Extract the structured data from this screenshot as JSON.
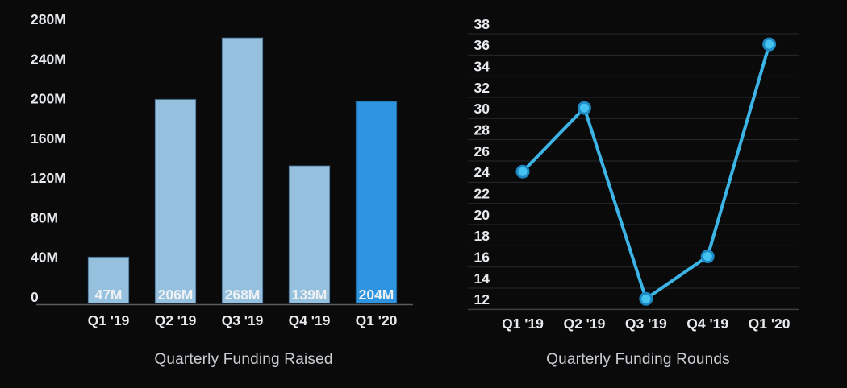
{
  "page": {
    "background": "#0a0a0b"
  },
  "colors": {
    "background": "#0a0a0b",
    "axis_text": "#e8ebee",
    "title_text": "#c9ced3",
    "bar_fill": "#96c1de",
    "bar_highlight_fill": "#2e94df",
    "bar_edge": "rgba(13,40,66,0.5)",
    "bar_value_text": "#eef1f4",
    "axis_line": "#565b60",
    "gridline": "#27292c",
    "gridline_bottom": "#3a3d41",
    "line_stroke": "#3cb4e5",
    "marker_ring": "#1f89c4",
    "marker_fill": "#45c3f0"
  },
  "chart_data": [
    {
      "type": "bar",
      "title": "Quarterly Funding Raised",
      "categories": [
        "Q1 '19",
        "Q2 '19",
        "Q3 '19",
        "Q4 '19",
        "Q1 '20"
      ],
      "values": [
        47,
        206,
        268,
        139,
        204
      ],
      "value_labels": [
        "47M",
        "206M",
        "268M",
        "139M",
        "204M"
      ],
      "highlight_index": 4,
      "y_tick_labels": [
        "280M",
        "240M",
        "200M",
        "160M",
        "120M",
        "80M",
        "40M",
        "0"
      ],
      "y_tick_values": [
        280,
        240,
        200,
        160,
        120,
        80,
        40,
        0
      ],
      "ylim": [
        0,
        280
      ],
      "xlabel": "",
      "ylabel": "",
      "grid": false,
      "legend": "none"
    },
    {
      "type": "line",
      "title": "Quarterly Funding Rounds",
      "categories": [
        "Q1 '19",
        "Q2 '19",
        "Q3 '19",
        "Q4 '19",
        "Q1 '20"
      ],
      "values": [
        24,
        30,
        12,
        16,
        36
      ],
      "y_tick_values": [
        38,
        36,
        34,
        32,
        30,
        28,
        26,
        24,
        22,
        20,
        18,
        16,
        14,
        12
      ],
      "ylim": [
        11,
        39
      ],
      "xlabel": "",
      "ylabel": "",
      "grid": true,
      "legend": "none"
    }
  ]
}
